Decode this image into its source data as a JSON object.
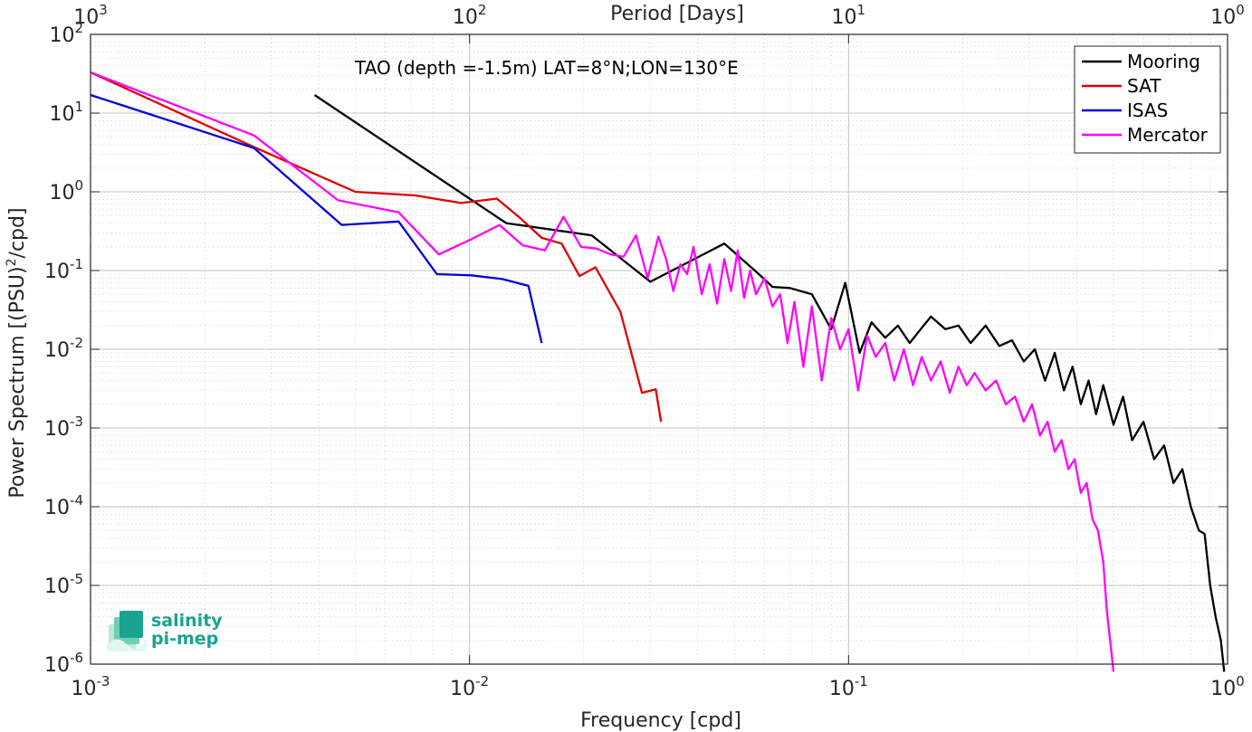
{
  "chart_data": {
    "type": "line",
    "title": "",
    "annotation": "TAO (depth =-1.5m) LAT=8°N;LON=130°E",
    "xlabel": "Frequency [cpd]",
    "ylabel": "Power Spectrum [(PSU)²/cpd]",
    "ylabel_base": "Power Spectrum [(PSU)",
    "ylabel_sup": "2",
    "ylabel_end": "/cpd]",
    "top_xlabel": "Period [Days]",
    "xscale": "log",
    "yscale": "log",
    "xlim": [
      0.001,
      1
    ],
    "ylim": [
      1e-06,
      100
    ],
    "grid": true,
    "legend_position": "top-right",
    "x_ticks": [
      {
        "value": 0.001,
        "base": "10",
        "exp": "-3"
      },
      {
        "value": 0.01,
        "base": "10",
        "exp": "-2"
      },
      {
        "value": 0.1,
        "base": "10",
        "exp": "-1"
      },
      {
        "value": 1,
        "base": "10",
        "exp": "0"
      }
    ],
    "top_ticks": [
      {
        "value": 0.001,
        "base": "10",
        "exp": "3"
      },
      {
        "value": 0.01,
        "base": "10",
        "exp": "2"
      },
      {
        "value": 0.1,
        "base": "10",
        "exp": "1"
      },
      {
        "value": 1,
        "base": "10",
        "exp": "0"
      }
    ],
    "y_ticks": [
      {
        "value": 100,
        "base": "10",
        "exp": "2"
      },
      {
        "value": 10,
        "base": "10",
        "exp": "1"
      },
      {
        "value": 1,
        "base": "10",
        "exp": "0"
      },
      {
        "value": 0.1,
        "base": "10",
        "exp": "-1"
      },
      {
        "value": 0.01,
        "base": "10",
        "exp": "-2"
      },
      {
        "value": 0.001,
        "base": "10",
        "exp": "-3"
      },
      {
        "value": 0.0001,
        "base": "10",
        "exp": "-4"
      },
      {
        "value": 1e-05,
        "base": "10",
        "exp": "-5"
      },
      {
        "value": 1e-06,
        "base": "10",
        "exp": "-6"
      }
    ],
    "series": [
      {
        "name": "Mooring",
        "color": "#000000",
        "x": [
          0.0039,
          0.0125,
          0.021,
          0.03,
          0.047,
          0.058,
          0.063,
          0.07,
          0.08,
          0.09,
          0.098,
          0.107,
          0.115,
          0.125,
          0.135,
          0.145,
          0.155,
          0.165,
          0.18,
          0.195,
          0.21,
          0.23,
          0.25,
          0.27,
          0.29,
          0.31,
          0.33,
          0.35,
          0.37,
          0.39,
          0.41,
          0.43,
          0.45,
          0.47,
          0.5,
          0.53,
          0.56,
          0.6,
          0.64,
          0.68,
          0.72,
          0.76,
          0.8,
          0.84,
          0.87,
          0.9,
          0.93,
          0.96,
          0.98
        ],
        "y": [
          17,
          0.4,
          0.28,
          0.072,
          0.22,
          0.09,
          0.062,
          0.06,
          0.05,
          0.018,
          0.07,
          0.009,
          0.022,
          0.014,
          0.02,
          0.012,
          0.018,
          0.026,
          0.018,
          0.02,
          0.012,
          0.02,
          0.011,
          0.013,
          0.007,
          0.01,
          0.004,
          0.009,
          0.003,
          0.006,
          0.002,
          0.004,
          0.0015,
          0.0035,
          0.0011,
          0.0025,
          0.0007,
          0.0012,
          0.0004,
          0.0006,
          0.0002,
          0.0003,
          0.0001,
          5e-05,
          4.5e-05,
          1e-05,
          4e-06,
          2e-06,
          8e-07
        ]
      },
      {
        "name": "SAT",
        "color": "#e00000",
        "x": [
          0.001,
          0.0027,
          0.005,
          0.0072,
          0.0095,
          0.0118,
          0.0135,
          0.0155,
          0.0175,
          0.0195,
          0.0215,
          0.025,
          0.0285,
          0.031,
          0.032
        ],
        "y": [
          33,
          3.7,
          1.0,
          0.9,
          0.72,
          0.82,
          0.48,
          0.26,
          0.22,
          0.085,
          0.11,
          0.03,
          0.0028,
          0.0031,
          0.0012
        ]
      },
      {
        "name": "ISAS",
        "color": "#0000d8",
        "x": [
          0.001,
          0.0027,
          0.0046,
          0.0065,
          0.0082,
          0.0101,
          0.0122,
          0.0143,
          0.0155
        ],
        "y": [
          17,
          3.6,
          0.38,
          0.42,
          0.09,
          0.087,
          0.078,
          0.064,
          0.012
        ]
      },
      {
        "name": "Mercator",
        "color": "#ff00ff",
        "x": [
          0.001,
          0.0027,
          0.0045,
          0.0065,
          0.0083,
          0.0101,
          0.012,
          0.0138,
          0.0158,
          0.0177,
          0.0197,
          0.0216,
          0.0236,
          0.0255,
          0.0275,
          0.0295,
          0.0315,
          0.033,
          0.0345,
          0.036,
          0.0375,
          0.039,
          0.041,
          0.043,
          0.045,
          0.047,
          0.049,
          0.051,
          0.053,
          0.055,
          0.057,
          0.06,
          0.063,
          0.066,
          0.069,
          0.072,
          0.076,
          0.08,
          0.085,
          0.09,
          0.095,
          0.1,
          0.106,
          0.112,
          0.118,
          0.125,
          0.132,
          0.14,
          0.148,
          0.156,
          0.165,
          0.175,
          0.185,
          0.195,
          0.205,
          0.215,
          0.23,
          0.245,
          0.26,
          0.275,
          0.29,
          0.305,
          0.32,
          0.335,
          0.35,
          0.365,
          0.38,
          0.395,
          0.41,
          0.425,
          0.44,
          0.455,
          0.47,
          0.48,
          0.49,
          0.5
        ],
        "y": [
          33,
          5.2,
          0.78,
          0.55,
          0.16,
          0.25,
          0.38,
          0.21,
          0.18,
          0.48,
          0.2,
          0.19,
          0.16,
          0.15,
          0.28,
          0.08,
          0.27,
          0.14,
          0.055,
          0.12,
          0.09,
          0.2,
          0.05,
          0.12,
          0.038,
          0.14,
          0.055,
          0.18,
          0.045,
          0.1,
          0.05,
          0.08,
          0.035,
          0.05,
          0.012,
          0.04,
          0.006,
          0.035,
          0.004,
          0.025,
          0.01,
          0.018,
          0.003,
          0.015,
          0.008,
          0.012,
          0.004,
          0.01,
          0.0035,
          0.008,
          0.004,
          0.007,
          0.0028,
          0.006,
          0.0035,
          0.005,
          0.003,
          0.004,
          0.002,
          0.0025,
          0.0012,
          0.002,
          0.0008,
          0.0012,
          0.0005,
          0.0007,
          0.0003,
          0.0004,
          0.00015,
          0.0002,
          7e-05,
          5e-05,
          2e-05,
          5e-06,
          2e-06,
          8e-07
        ]
      }
    ]
  },
  "logo": {
    "line1": "salinity",
    "line2": "pi-mep"
  }
}
